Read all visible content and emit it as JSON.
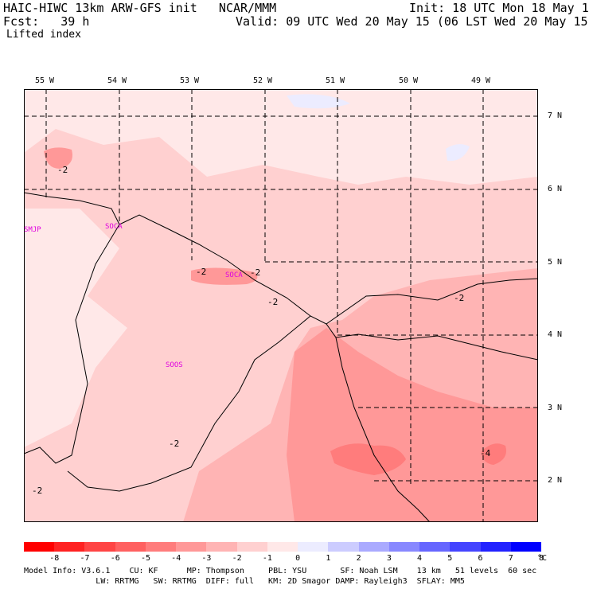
{
  "header": {
    "line1_left": "HAIC-HIWC 13km ARW-GFS init   NCAR/MMM",
    "line1_right": "Init: 18 UTC Mon 18 May 15",
    "line2_left": "Fcst:   39 h",
    "line2_right": "Valid: 09 UTC Wed 20 May 15 (06 LST Wed 20 May 15)",
    "field_name": "Lifted index"
  },
  "axes": {
    "lon_labels": [
      "55 W",
      "54 W",
      "53 W",
      "52 W",
      "51 W",
      "50 W",
      "49 W"
    ],
    "lat_labels": [
      "7 N",
      "6 N",
      "5 N",
      "4 N",
      "3 N",
      "2 N"
    ]
  },
  "stations": [
    "SMJP",
    "SOCA",
    "SOCA",
    "SOOS"
  ],
  "contour_labels": [
    "-2",
    "-2",
    "-2",
    "-2",
    "-2",
    "-2",
    "-2",
    "-2",
    "-4",
    "-4"
  ],
  "colorbar": {
    "unit": "°C",
    "labels": [
      "-8",
      "-7",
      "-6",
      "-5",
      "-4",
      "-3",
      "-2",
      "-1",
      "0",
      "1",
      "2",
      "3",
      "4",
      "5",
      "6",
      "7",
      "8"
    ],
    "colors": [
      "#ff0000",
      "#ff2222",
      "#ff4444",
      "#ff6060",
      "#ff7c7c",
      "#ff9898",
      "#ffb4b4",
      "#ffd0d0",
      "#ffe8e8",
      "#ececff",
      "#ccccff",
      "#aaaaff",
      "#8888ff",
      "#6666ff",
      "#4444ff",
      "#2222ff",
      "#0000ff"
    ]
  },
  "footer": {
    "line1": "Model Info: V3.6.1    CU: KF      MP: Thompson     PBL: YSU       SF: Noah LSM    13 km   51 levels  60 sec",
    "line2": "               LW: RRTMG   SW: RRTMG  DIFF: full   KM: 2D Smagor DAMP: Rayleigh3  SFLAY: MM5"
  }
}
